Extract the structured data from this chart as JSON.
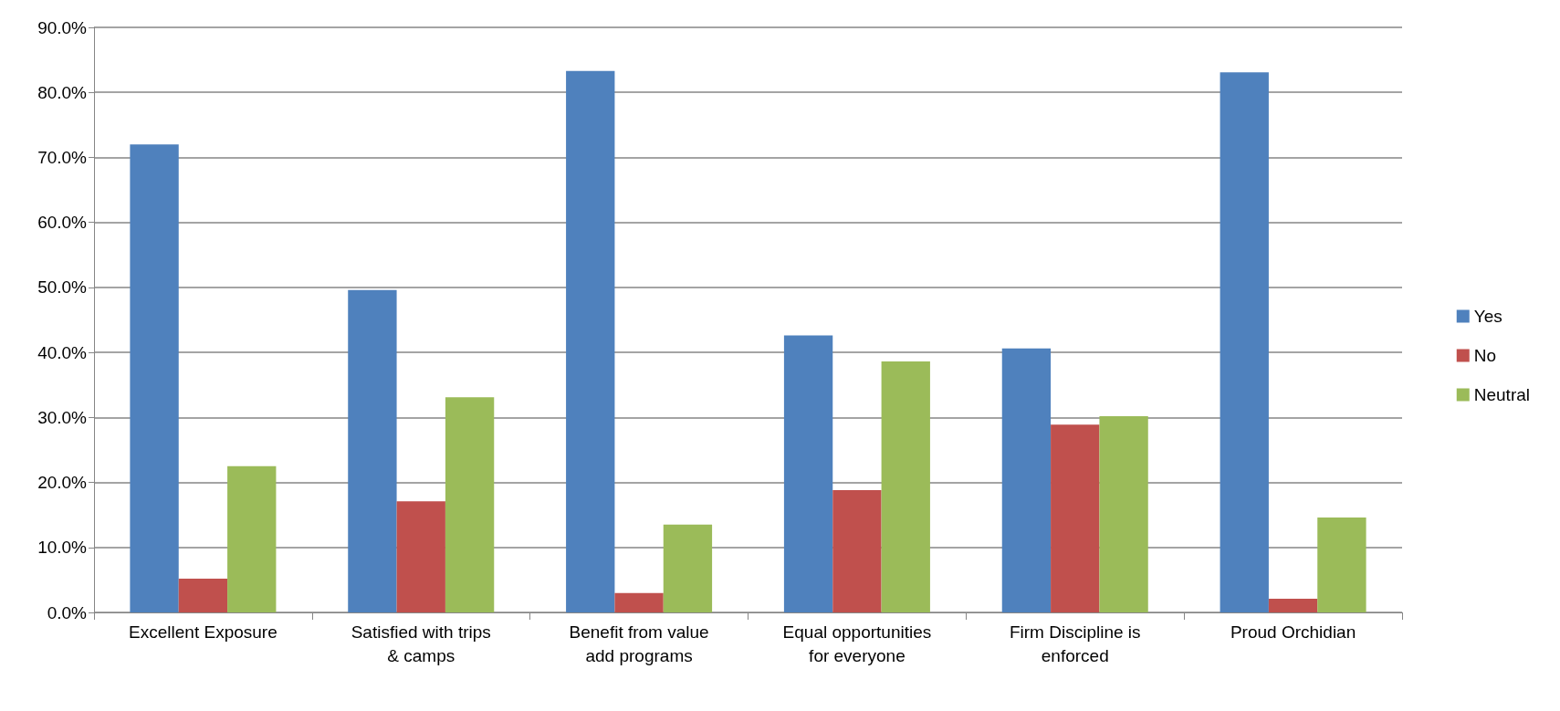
{
  "chart_data": {
    "type": "bar",
    "categories": [
      "Excellent Exposure",
      "Satisfied with trips & camps",
      "Benefit from value add programs",
      "Equal opportunities for everyone",
      "Firm Discipline is enforced",
      "Proud Orchidian"
    ],
    "series": [
      {
        "name": "Yes",
        "color": "#4f81bd",
        "values": [
          72.0,
          49.6,
          83.3,
          42.6,
          40.6,
          83.1
        ]
      },
      {
        "name": "No",
        "color": "#c0504d",
        "values": [
          5.2,
          17.1,
          3.0,
          18.8,
          28.9,
          2.1
        ]
      },
      {
        "name": "Neutral",
        "color": "#9bbb59",
        "values": [
          22.5,
          33.1,
          13.5,
          38.6,
          30.2,
          14.6
        ]
      }
    ],
    "ylim": [
      0,
      90
    ],
    "yticks": [
      {
        "value": 0,
        "label": "0.0%"
      },
      {
        "value": 10,
        "label": "10.0%"
      },
      {
        "value": 20,
        "label": "20.0%"
      },
      {
        "value": 30,
        "label": "30.0%"
      },
      {
        "value": 40,
        "label": "40.0%"
      },
      {
        "value": 50,
        "label": "50.0%"
      },
      {
        "value": 60,
        "label": "60.0%"
      },
      {
        "value": 70,
        "label": "70.0%"
      },
      {
        "value": 80,
        "label": "80.0%"
      },
      {
        "value": 90,
        "label": "90.0%"
      }
    ],
    "grid": "y",
    "legend": "right"
  }
}
